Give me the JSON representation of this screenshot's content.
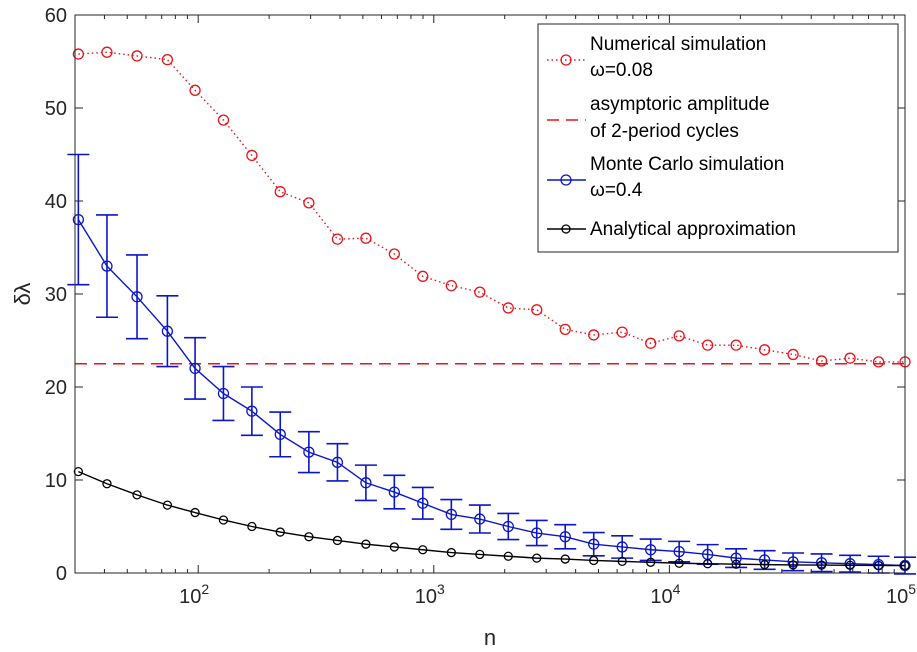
{
  "chart_data": {
    "type": "line",
    "xlabel": "n",
    "ylabel": "δλ",
    "xscale": "log",
    "xlim": [
      30,
      100000
    ],
    "ylim": [
      0,
      60
    ],
    "yticks": [
      "0",
      "10",
      "20",
      "30",
      "40",
      "50",
      "60"
    ],
    "xticks": [
      {
        "value": 100,
        "base": "10",
        "exp": "2"
      },
      {
        "value": 1000,
        "base": "10",
        "exp": "3"
      },
      {
        "value": 10000,
        "base": "10",
        "exp": "4"
      },
      {
        "value": 100000,
        "base": "10",
        "exp": "5"
      }
    ],
    "grid": false,
    "legend_position": "top-right",
    "x": [
      31,
      41,
      55,
      74,
      97,
      128,
      169,
      223,
      295,
      390,
      515,
      680,
      898,
      1187,
      1568,
      2071,
      2735,
      3613,
      4773,
      6305,
      8329,
      11002,
      14533,
      19198,
      25360,
      33500,
      44253,
      58457,
      77220,
      100000
    ],
    "series": [
      {
        "name": "Numerical simulation",
        "label_line2": "ω=0.08",
        "color": "#e8141c",
        "line_style": "dotted",
        "marker": "circle",
        "values": [
          55.8,
          56.0,
          55.6,
          55.2,
          51.9,
          48.7,
          44.9,
          41.0,
          39.8,
          35.9,
          36.0,
          34.3,
          31.9,
          30.9,
          30.2,
          28.5,
          28.3,
          26.2,
          25.6,
          25.9,
          24.7,
          25.5,
          24.5,
          24.5,
          24.0,
          23.5,
          22.8,
          23.1,
          22.7,
          22.7
        ]
      },
      {
        "name": "asymptoric amplitude",
        "label_line2": "of 2-period cycles",
        "color": "#e8141c",
        "line_style": "dashed",
        "marker": "none",
        "constant": 22.5
      },
      {
        "name": "Monte Carlo simulation",
        "label_line2": "ω=0.4",
        "color": "#0a16c8",
        "line_style": "solid",
        "marker": "circle",
        "values": [
          38.0,
          33.0,
          29.7,
          26.0,
          22.0,
          19.3,
          17.4,
          14.9,
          13.0,
          11.9,
          9.7,
          8.7,
          7.5,
          6.3,
          5.8,
          5.0,
          4.3,
          3.9,
          3.1,
          2.8,
          2.5,
          2.3,
          2.0,
          1.6,
          1.4,
          1.2,
          1.1,
          1.0,
          0.9,
          0.8
        ],
        "errors": [
          7.0,
          5.5,
          4.5,
          3.8,
          3.3,
          2.9,
          2.6,
          2.4,
          2.2,
          2.0,
          1.9,
          1.8,
          1.7,
          1.6,
          1.5,
          1.4,
          1.35,
          1.3,
          1.25,
          1.2,
          1.15,
          1.1,
          1.05,
          1.0,
          1.0,
          0.95,
          0.95,
          0.9,
          0.9,
          0.9
        ]
      },
      {
        "name": "Analytical approximation",
        "label_line2": "",
        "color": "#000000",
        "line_style": "solid",
        "marker": "circle-small",
        "values": [
          10.9,
          9.6,
          8.4,
          7.3,
          6.5,
          5.7,
          5.0,
          4.4,
          3.9,
          3.5,
          3.1,
          2.8,
          2.5,
          2.2,
          2.0,
          1.8,
          1.6,
          1.5,
          1.35,
          1.25,
          1.15,
          1.05,
          1.0,
          0.95,
          0.9,
          0.87,
          0.85,
          0.83,
          0.81,
          0.8
        ]
      }
    ]
  }
}
